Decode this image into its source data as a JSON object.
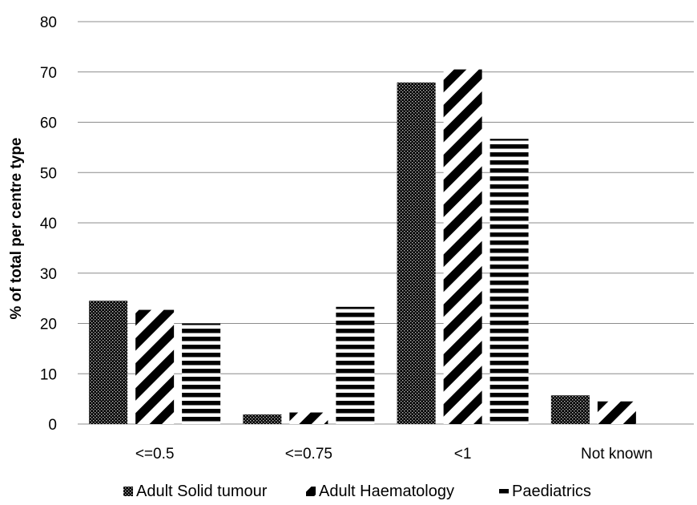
{
  "chart_data": {
    "type": "bar",
    "categories": [
      "<=0.5",
      "<=0.75",
      "<1",
      "Not known"
    ],
    "series": [
      {
        "name": "Adult Solid tumour",
        "values": [
          24.5,
          1.9,
          67.9,
          5.7
        ]
      },
      {
        "name": "Adult Haematology",
        "values": [
          22.7,
          2.3,
          70.5,
          4.5
        ]
      },
      {
        "name": "Paediatrics",
        "values": [
          20.0,
          23.3,
          56.7,
          0
        ]
      }
    ],
    "title": "",
    "xlabel": "",
    "ylabel": "% of total per centre type",
    "ylim": [
      0,
      80
    ],
    "yticks": [
      0,
      10,
      20,
      30,
      40,
      50,
      60,
      70,
      80
    ],
    "grid": true,
    "legend_position": "bottom"
  }
}
